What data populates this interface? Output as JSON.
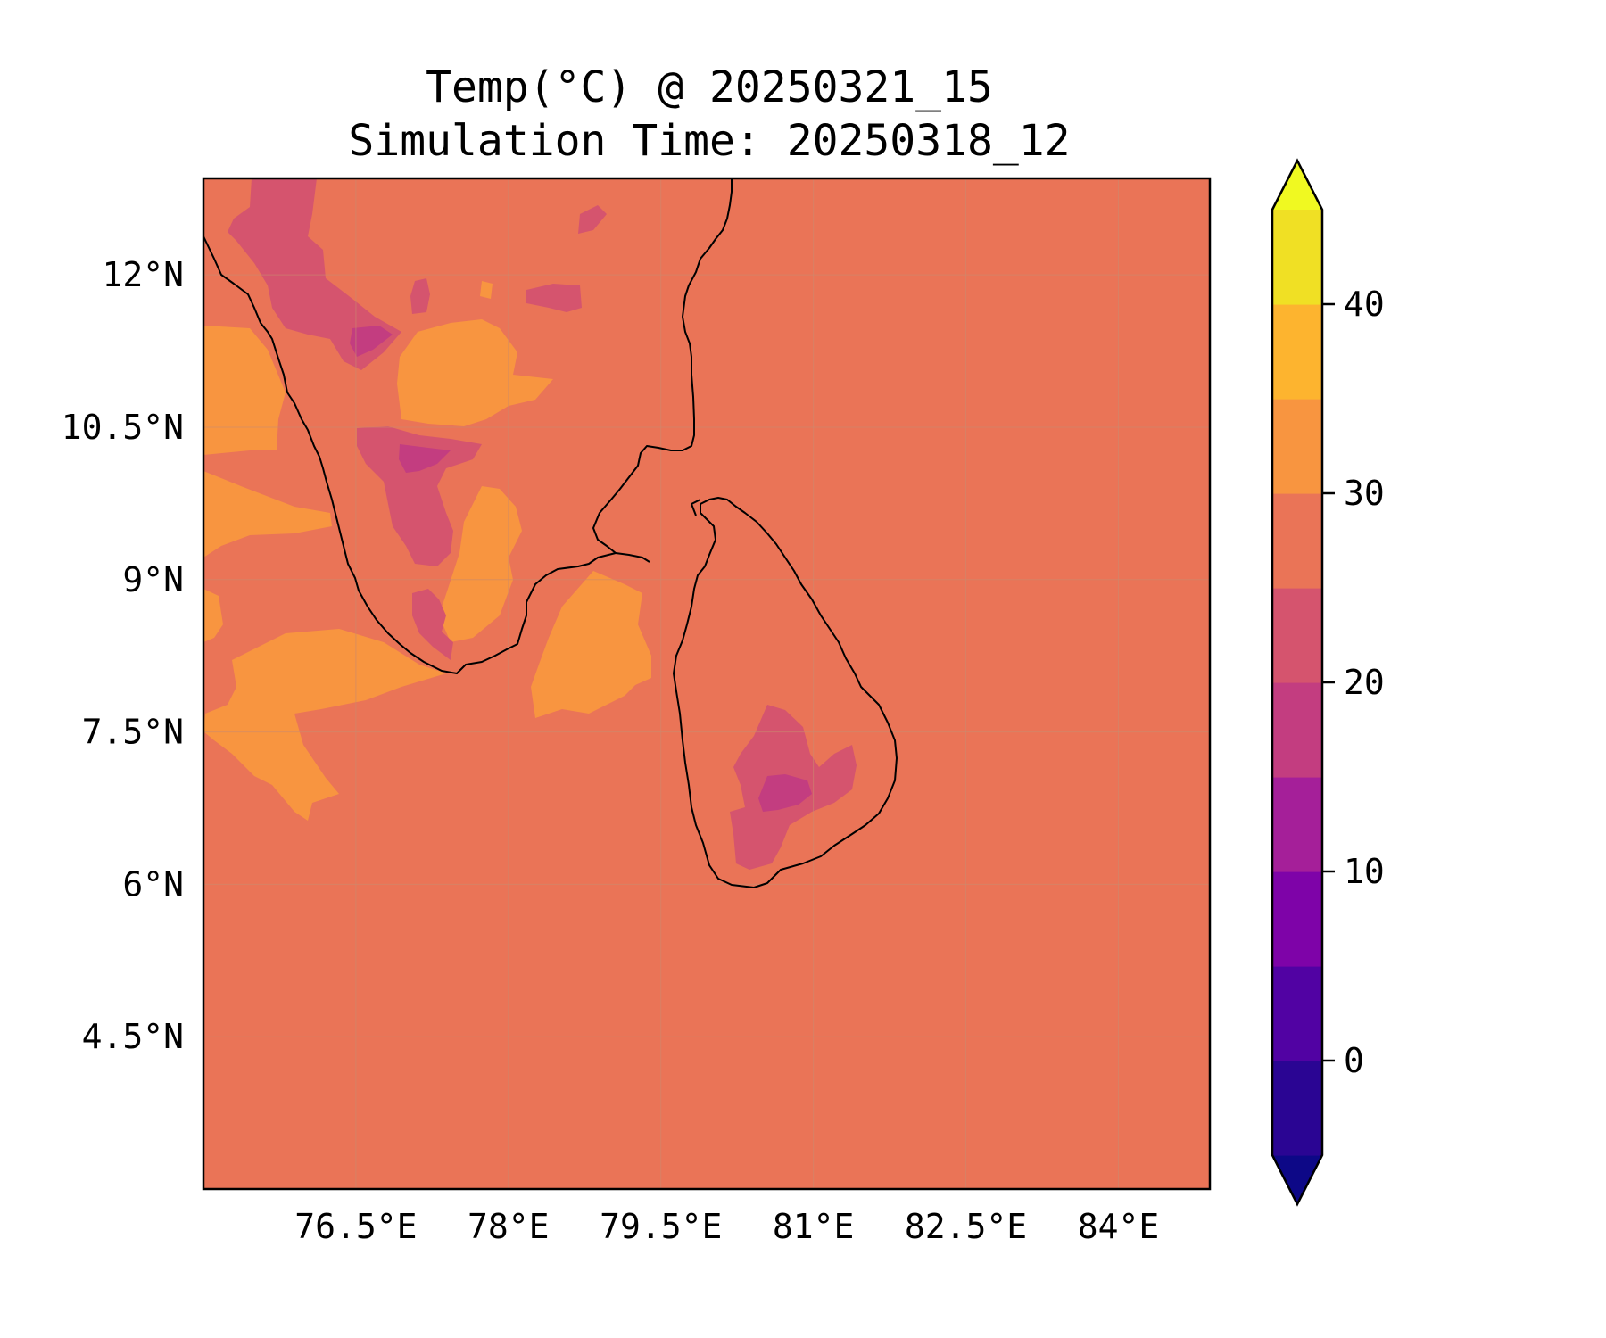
{
  "title": "Temp(°C) @ 20250321_15",
  "subtitle": "Simulation Time: 20250318_12",
  "chart_data": {
    "type": "heatmap",
    "variable": "Temp(°C)",
    "valid_time": "20250321_15",
    "simulation_time": "20250318_12",
    "x_ticks": [
      "76.5°E",
      "78°E",
      "79.5°E",
      "81°E",
      "82.5°E",
      "84°E"
    ],
    "x_tick_values": [
      76.5,
      78,
      79.5,
      81,
      82.5,
      84
    ],
    "y_ticks": [
      "12°N",
      "10.5°N",
      "9°N",
      "7.5°N",
      "6°N",
      "4.5°N"
    ],
    "y_tick_values": [
      12,
      10.5,
      9,
      7.5,
      6,
      4.5
    ],
    "xlim": [
      75.0,
      84.9
    ],
    "ylim": [
      3.0,
      12.95
    ],
    "grid": true,
    "colorbar": {
      "ticks": [
        "0",
        "10",
        "20",
        "30",
        "40"
      ],
      "tick_values": [
        0,
        10,
        20,
        30,
        40
      ],
      "levels": [
        -5,
        0,
        5,
        10,
        15,
        20,
        25,
        30,
        35,
        40,
        45
      ],
      "extend": "both",
      "colors": [
        "#0d0887",
        "#2a0593",
        "#5102a3",
        "#7e03a8",
        "#a51f99",
        "#c33d80",
        "#d5546e",
        "#ea7457",
        "#f89540",
        "#fdb42f",
        "#f0e024",
        "#f0f921"
      ]
    },
    "background_level_range": [
      25,
      30
    ]
  }
}
